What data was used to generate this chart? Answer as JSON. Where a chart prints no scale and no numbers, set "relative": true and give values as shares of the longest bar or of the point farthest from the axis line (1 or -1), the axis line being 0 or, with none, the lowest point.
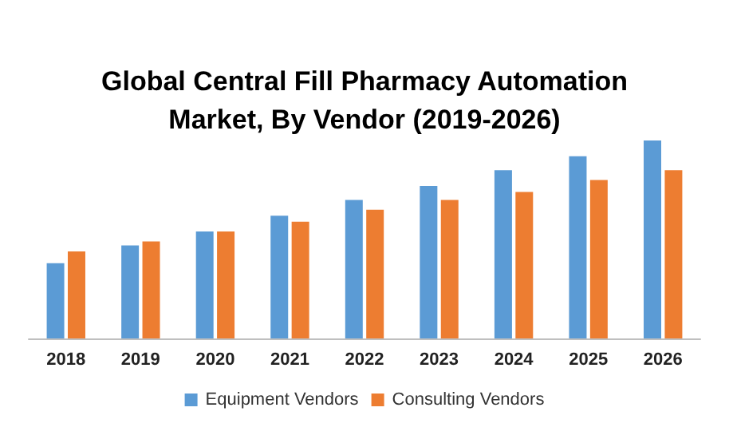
{
  "chart_data": {
    "type": "bar",
    "title": "Global Central Fill Pharmacy Automation\nMarket, By Vendor (2019-2026)",
    "relative": true,
    "categories": [
      "2018",
      "2019",
      "2020",
      "2021",
      "2022",
      "2023",
      "2024",
      "2025",
      "2026"
    ],
    "series": [
      {
        "name": "Equipment Vendors",
        "color": "#5b9bd5",
        "values": [
          0.38,
          0.47,
          0.54,
          0.62,
          0.7,
          0.77,
          0.85,
          0.92,
          1
        ]
      },
      {
        "name": "Consulting Vendors",
        "color": "#ed7d31",
        "values": [
          0.44,
          0.49,
          0.54,
          0.59,
          0.65,
          0.7,
          0.74,
          0.8,
          0.85
        ]
      }
    ],
    "legend": "bottom"
  }
}
